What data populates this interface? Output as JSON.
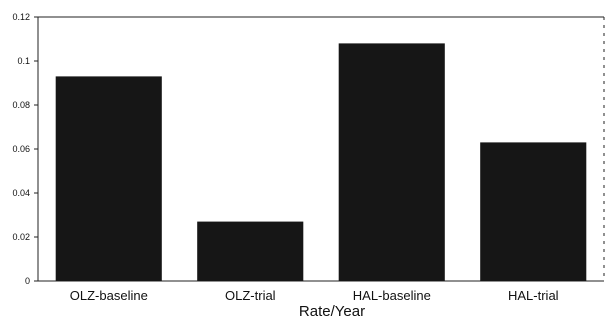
{
  "chart_data": {
    "type": "bar",
    "categories": [
      "OLZ-baseline",
      "OLZ-trial",
      "HAL-baseline",
      "HAL-trial"
    ],
    "values": [
      0.093,
      0.027,
      0.108,
      0.063
    ],
    "title": "",
    "xlabel": "Rate/Year",
    "ylabel": "",
    "ylim": [
      0,
      0.12
    ],
    "yticks": [
      "0",
      "0.02",
      "0.04",
      "0.06",
      "0.08",
      "0.1",
      "0.12"
    ],
    "grid": false,
    "colors": {
      "bar": "#141414",
      "axis": "#222222",
      "text": "#111111"
    }
  }
}
